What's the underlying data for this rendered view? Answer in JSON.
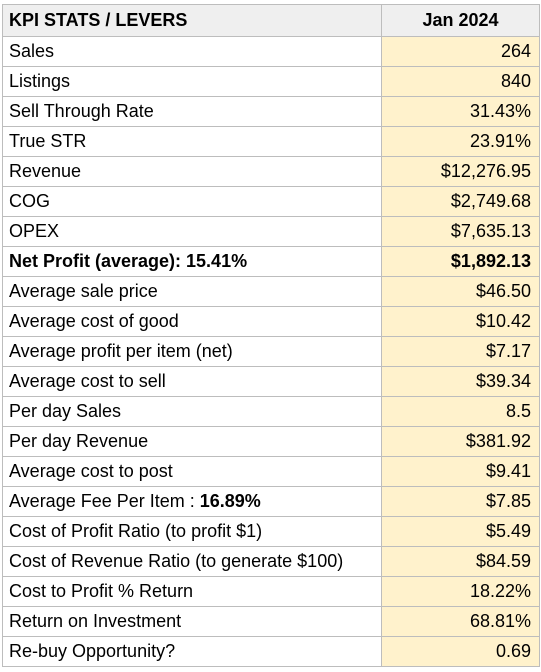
{
  "header": {
    "label": "KPI STATS / LEVERS",
    "period": "Jan 2024"
  },
  "rows": [
    {
      "label": "Sales",
      "value": "264"
    },
    {
      "label": "Listings",
      "value": "840"
    },
    {
      "label": "Sell Through Rate",
      "value": "31.43%"
    },
    {
      "label": "True STR",
      "value": "23.91%"
    },
    {
      "label": "Revenue",
      "value": "$12,276.95"
    },
    {
      "label": "COG",
      "value": "$2,749.68"
    },
    {
      "label": "OPEX",
      "value": "$7,635.13"
    },
    {
      "label": "Net Profit (average): 15.41%",
      "value": "$1,892.13"
    },
    {
      "label": "Average sale price",
      "value": "$46.50"
    },
    {
      "label": "Average cost of good",
      "value": "$10.42"
    },
    {
      "label": "Average profit per item (net)",
      "value": "$7.17"
    },
    {
      "label": "Average cost to sell",
      "value": "$39.34"
    },
    {
      "label": "Per day Sales",
      "value": "8.5"
    },
    {
      "label": "Per day Revenue",
      "value": "$381.92"
    },
    {
      "label": "Average cost to post",
      "value": "$9.41"
    },
    {
      "label": "Average Fee Per Item : ",
      "label_emphasis": "16.89%",
      "value": "$7.85"
    },
    {
      "label": "Cost of Profit Ratio (to profit $1)",
      "value": "$5.49"
    },
    {
      "label": "Cost of Revenue Ratio (to generate $100)",
      "value": "$84.59"
    },
    {
      "label": "Cost to Profit % Return",
      "value": "18.22%"
    },
    {
      "label": "Return on Investment",
      "value": "68.81%"
    },
    {
      "label": "Re-buy Opportunity?",
      "value": "0.69"
    }
  ]
}
